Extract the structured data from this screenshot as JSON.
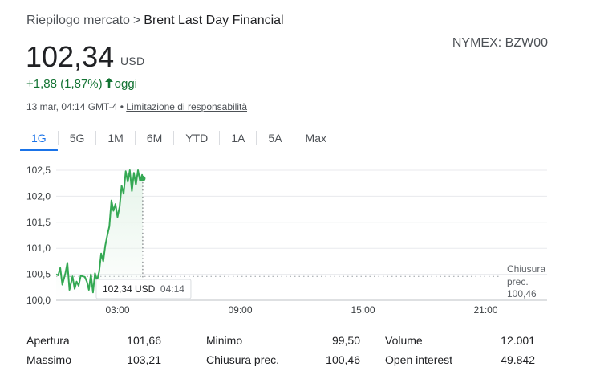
{
  "breadcrumb": {
    "parent": "Riepilogo mercato",
    "separator": ">",
    "current": "Brent Last Day Financial"
  },
  "exchange": "NYMEX: BZW00",
  "quote": {
    "price": "102,34",
    "currency": "USD",
    "change": "+1,88 (1,87%)",
    "change_period": "oggi",
    "timestamp": "13 mar, 04:14 GMT-4",
    "disclaimer": "Limitazione di responsabilità"
  },
  "colors": {
    "positive": "#137333",
    "line": "#34a853",
    "accent": "#1a73e8",
    "grid": "#e8eaed"
  },
  "tabs": [
    "1G",
    "5G",
    "1M",
    "6M",
    "YTD",
    "1A",
    "5A",
    "Max"
  ],
  "active_tab": "1G",
  "tooltip": {
    "price": "102,34 USD",
    "time": "04:14"
  },
  "prev_close_label": {
    "line1": "Chiusura",
    "line2": "prec.",
    "value": "100,46"
  },
  "chart_data": {
    "type": "line",
    "title": "",
    "xlabel": "",
    "ylabel": "",
    "yticks": [
      "102,5",
      "102,0",
      "101,5",
      "101,0",
      "100,5",
      "100,0"
    ],
    "ytick_values": [
      102.5,
      102.0,
      101.5,
      101.0,
      100.5,
      100.0
    ],
    "xticks": [
      "03:00",
      "09:00",
      "15:00",
      "21:00"
    ],
    "xtick_hours": [
      3,
      9,
      15,
      21
    ],
    "ylim": [
      100.0,
      102.5
    ],
    "xlim_hours": [
      0,
      24
    ],
    "previous_close": 100.46,
    "series": [
      {
        "x": [
          0,
          0.1,
          0.2,
          0.3,
          0.45,
          0.55,
          0.65,
          0.8,
          0.9,
          1.0,
          1.1,
          1.2,
          1.3,
          1.4,
          1.5,
          1.6,
          1.7,
          1.8,
          1.9,
          2.0,
          2.1,
          2.2,
          2.3,
          2.4,
          2.5,
          2.6,
          2.7,
          2.8,
          2.9,
          3.0,
          3.1,
          3.2,
          3.3,
          3.4,
          3.5,
          3.6,
          3.7,
          3.8,
          3.9,
          4.0,
          4.1,
          4.2,
          4.233
        ],
        "y": [
          100.5,
          100.48,
          100.62,
          100.3,
          100.52,
          100.72,
          100.2,
          100.46,
          100.22,
          100.36,
          100.28,
          100.47,
          100.46,
          100.45,
          100.36,
          100.2,
          100.5,
          100.15,
          100.52,
          100.38,
          100.55,
          100.9,
          100.75,
          101.05,
          101.25,
          101.42,
          101.92,
          101.72,
          101.85,
          101.6,
          101.8,
          102.2,
          102.05,
          102.48,
          102.28,
          102.5,
          102.1,
          102.45,
          102.22,
          102.5,
          102.3,
          102.41,
          102.34
        ]
      }
    ]
  },
  "stats": [
    [
      {
        "label": "Apertura",
        "value": "101,66"
      },
      {
        "label": "Minimo",
        "value": "99,50"
      },
      {
        "label": "Volume",
        "value": "12.001"
      }
    ],
    [
      {
        "label": "Massimo",
        "value": "103,21"
      },
      {
        "label": "Chiusura prec.",
        "value": "100,46"
      },
      {
        "label": "Open interest",
        "value": "49.842"
      }
    ]
  ]
}
